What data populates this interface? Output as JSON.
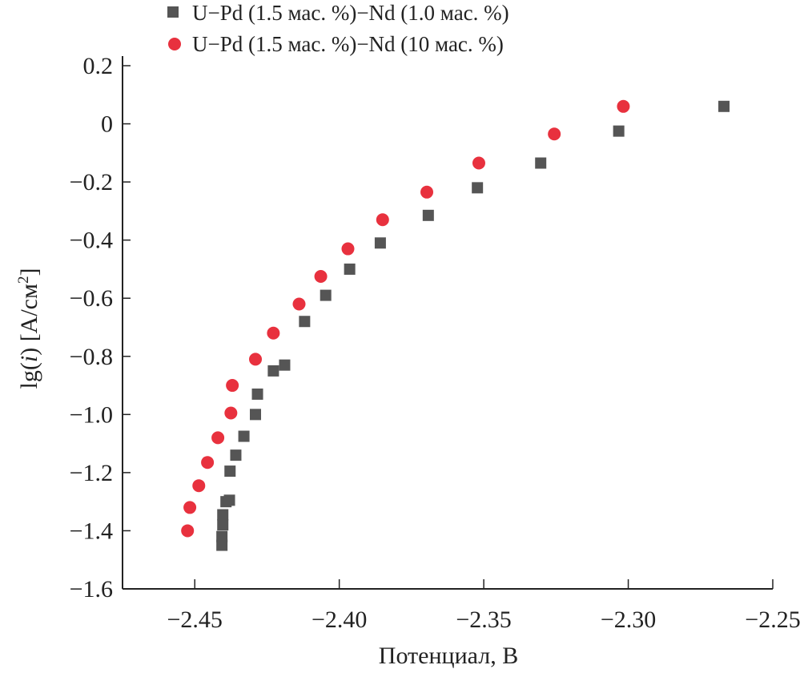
{
  "chart_data": {
    "type": "scatter",
    "title": "",
    "xlabel": "Потенциал, В",
    "ylabel": "lg(i) [A/см²]",
    "ylabel_parts": {
      "pre": "lg(",
      "italic": "i",
      "post": ") [A/см",
      "sup": "2",
      "close": "]"
    },
    "xlim": [
      -2.475,
      -2.25
    ],
    "ylim": [
      -1.6,
      0.2
    ],
    "x_ticks": [
      -2.45,
      -2.4,
      -2.35,
      -2.3,
      -2.25
    ],
    "x_tick_labels": [
      "−2.45",
      "−2.40",
      "−2.35",
      "−2.30",
      "−2.25"
    ],
    "y_ticks": [
      0.2,
      0,
      -0.2,
      -0.4,
      -0.6,
      -0.8,
      -1.0,
      -1.2,
      -1.4,
      -1.6
    ],
    "y_tick_labels": [
      "0.2",
      "0",
      "−0.2",
      "−0.4",
      "−0.6",
      "−0.8",
      "−1.0",
      "−1.2",
      "−1.4",
      "−1.6"
    ],
    "grid": false,
    "legend_placement": "top",
    "series": [
      {
        "name": "U−Pd (1.5 мас. %)−Nd (1.0 мас. %)",
        "marker": "square",
        "color": "#555555",
        "x": [
          -2.4406,
          -2.4406,
          -2.4403,
          -2.4403,
          -2.4392,
          -2.438,
          -2.4378,
          -2.4358,
          -2.433,
          -2.429,
          -2.4283,
          -2.4228,
          -2.4189,
          -2.412,
          -2.4047,
          -2.3964,
          -2.3858,
          -2.3692,
          -2.3522,
          -2.3303,
          -2.3033,
          -2.2669
        ],
        "y": [
          -1.45,
          -1.42,
          -1.38,
          -1.345,
          -1.3,
          -1.295,
          -1.195,
          -1.14,
          -1.075,
          -1.0,
          -0.93,
          -0.85,
          -0.83,
          -0.68,
          -0.59,
          -0.5,
          -0.41,
          -0.315,
          -0.22,
          -0.135,
          -0.025,
          0.06
        ]
      },
      {
        "name": "U−Pd (1.5 мас. %)−Nd (10 мас. %)",
        "marker": "circle",
        "color": "#e8313e",
        "x": [
          -2.4525,
          -2.4517,
          -2.4486,
          -2.4456,
          -2.442,
          -2.4375,
          -2.437,
          -2.429,
          -2.4228,
          -2.4139,
          -2.4064,
          -2.397,
          -2.385,
          -2.3697,
          -2.3517,
          -2.3256,
          -2.3017
        ],
        "y": [
          -1.4,
          -1.32,
          -1.245,
          -1.165,
          -1.08,
          -0.995,
          -0.9,
          -0.81,
          -0.72,
          -0.62,
          -0.525,
          -0.43,
          -0.33,
          -0.235,
          -0.135,
          -0.035,
          0.06
        ]
      }
    ]
  }
}
